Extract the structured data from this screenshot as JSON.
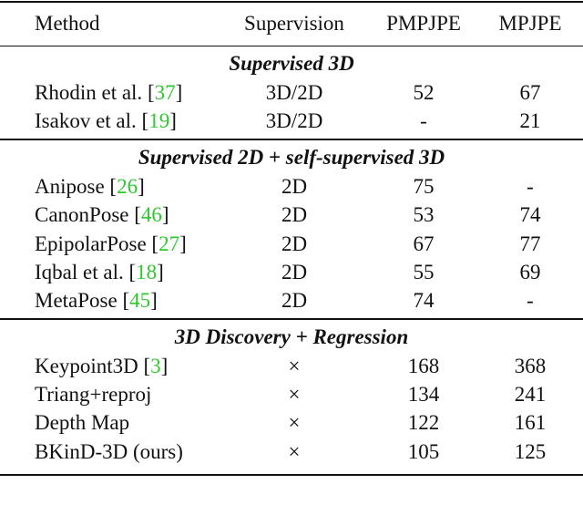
{
  "table": {
    "header": [
      "Method",
      "Supervision",
      "PMPJPE",
      "MPJPE"
    ],
    "sections": [
      {
        "title": "Supervised 3D",
        "rows": [
          {
            "method": "Rhodin et al.",
            "ref": "37",
            "cells": [
              "3D/2D",
              "52",
              "67"
            ]
          },
          {
            "method": "Isakov et al.",
            "ref": "19",
            "cells": [
              "3D/2D",
              "-",
              "21"
            ]
          }
        ]
      },
      {
        "title": "Supervised 2D + self-supervised 3D",
        "rows": [
          {
            "method": "Anipose",
            "ref": "26",
            "cells": [
              "2D",
              "75",
              "-"
            ]
          },
          {
            "method": "CanonPose",
            "ref": "46",
            "cells": [
              "2D",
              "53",
              "74"
            ]
          },
          {
            "method": "EpipolarPose",
            "ref": "27",
            "cells": [
              "2D",
              "67",
              "77"
            ]
          },
          {
            "method": "Iqbal et al.",
            "ref": "18",
            "cells": [
              "2D",
              "55",
              "69"
            ]
          },
          {
            "method": "MetaPose",
            "ref": "45",
            "cells": [
              "2D",
              "74",
              "-"
            ]
          }
        ]
      },
      {
        "title": "3D Discovery + Regression",
        "rows": [
          {
            "method": "Keypoint3D",
            "ref": "3",
            "cells": [
              "×",
              "168",
              "368"
            ]
          },
          {
            "method": "Triang+reproj",
            "cells": [
              "×",
              "134",
              "241"
            ]
          },
          {
            "method": "Depth Map",
            "cells": [
              "×",
              "122",
              "161"
            ]
          },
          {
            "method": "BKinD-3D (ours)",
            "cells": [
              "×",
              "105",
              "125"
            ]
          }
        ]
      }
    ]
  }
}
